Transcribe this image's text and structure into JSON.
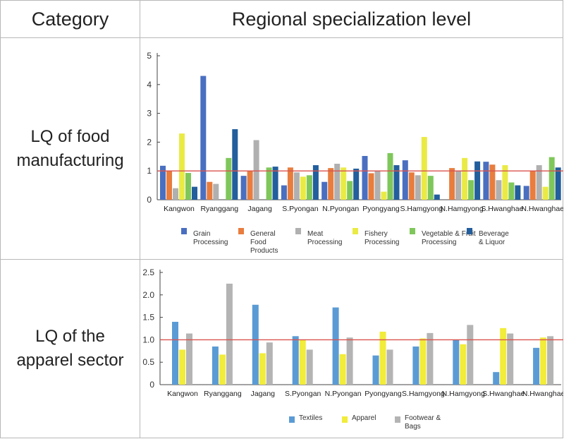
{
  "header": {
    "category": "Category",
    "level": "Regional specialization level"
  },
  "rows": [
    {
      "label_line1": "LQ of food",
      "label_line2": "manufacturing"
    },
    {
      "label_line1": "LQ of the",
      "label_line2": "apparel sector"
    }
  ],
  "colors": {
    "reference_line": "#d9534f",
    "grain": "#4a6fc1",
    "general_food": "#e87d3e",
    "meat": "#b0b0b0",
    "fishery": "#eaea45",
    "veg_fruit": "#7fc75a",
    "beverage": "#235e9d",
    "textiles": "#5b9bd5",
    "apparel": "#f2ec3a",
    "footwear": "#b4b4b4"
  },
  "chart_data": [
    {
      "type": "bar",
      "categories": [
        "Kangwon",
        "Ryanggang",
        "Jagang",
        "S.Pyongan",
        "N.Pyongan",
        "Pyongyang",
        "S.Hamgyong",
        "N.Hamgyong",
        "S.Hwanghae",
        "N.Hwanghae"
      ],
      "series": [
        {
          "name": "Grain Processing",
          "legend_lines": [
            "Grain",
            "Processing"
          ],
          "color": "#4a6fc1",
          "values": [
            1.18,
            4.3,
            0.83,
            0.5,
            0.62,
            1.52,
            1.37,
            0.0,
            1.32,
            0.48
          ]
        },
        {
          "name": "General Food Products",
          "legend_lines": [
            "General",
            "Food",
            "Products"
          ],
          "color": "#e87d3e",
          "values": [
            1.0,
            0.62,
            1.0,
            1.12,
            1.1,
            0.92,
            0.95,
            1.1,
            1.22,
            1.0
          ]
        },
        {
          "name": "Meat Processing",
          "legend_lines": [
            "Meat",
            "Processing"
          ],
          "color": "#b0b0b0",
          "values": [
            0.4,
            0.55,
            2.07,
            0.95,
            1.25,
            1.0,
            0.85,
            1.0,
            0.68,
            1.2
          ]
        },
        {
          "name": "Fishery Processing",
          "legend_lines": [
            "Fishery",
            "Processing"
          ],
          "color": "#eaea45",
          "values": [
            2.3,
            0.0,
            0.0,
            0.8,
            1.12,
            0.28,
            2.18,
            1.45,
            1.2,
            0.45
          ]
        },
        {
          "name": "Vegetable & Fruit Processing",
          "legend_lines": [
            "Vegetable & Fruit",
            "Processing"
          ],
          "color": "#7fc75a",
          "values": [
            0.93,
            1.45,
            1.12,
            0.85,
            0.65,
            1.62,
            0.83,
            0.68,
            0.6,
            1.48
          ]
        },
        {
          "name": "Beverage & Liquor",
          "legend_lines": [
            "Beverage",
            "& Liquor"
          ],
          "color": "#235e9d",
          "values": [
            0.45,
            2.45,
            1.15,
            1.2,
            1.08,
            1.2,
            0.18,
            1.33,
            0.5,
            1.12
          ]
        }
      ],
      "yticks": [
        "0",
        "1",
        "2",
        "3",
        "4",
        "5"
      ],
      "ylim": [
        0,
        5
      ],
      "reference_line": 1.0,
      "legend_position": "bottom"
    },
    {
      "type": "bar",
      "categories": [
        "Kangwon",
        "Ryanggang",
        "Jagang",
        "S.Pyongan",
        "N.Pyongan",
        "Pyongyang",
        "S.Hamgyong",
        "N.Hamgyong",
        "S.Hwanghae",
        "N.Hwanghae"
      ],
      "series": [
        {
          "name": "Textiles",
          "legend_lines": [
            "Textiles"
          ],
          "color": "#5b9bd5",
          "values": [
            1.4,
            0.85,
            1.78,
            1.08,
            1.72,
            0.65,
            0.85,
            1.0,
            0.28,
            0.82
          ]
        },
        {
          "name": "Apparel",
          "legend_lines": [
            "Apparel"
          ],
          "color": "#f2ec3a",
          "values": [
            0.78,
            0.67,
            0.7,
            1.0,
            0.68,
            1.18,
            1.03,
            0.9,
            1.26,
            1.05
          ]
        },
        {
          "name": "Footwear & Bags",
          "legend_lines": [
            "Footwear &",
            "Bags"
          ],
          "color": "#b4b4b4",
          "values": [
            1.14,
            2.25,
            0.94,
            0.78,
            1.05,
            0.78,
            1.15,
            1.33,
            1.14,
            1.08
          ]
        }
      ],
      "yticks": [
        "0",
        "0.5",
        "1.0",
        "1.5",
        "2.0",
        "2.5"
      ],
      "ylim": [
        0,
        2.5
      ],
      "reference_line": 1.0,
      "legend_position": "bottom"
    }
  ]
}
